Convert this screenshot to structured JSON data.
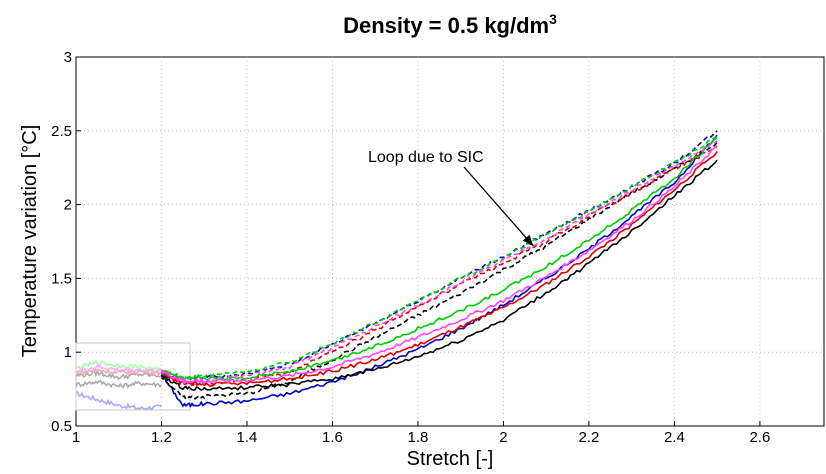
{
  "chart_data": {
    "type": "line",
    "title": "Density = 0.5 kg/dm",
    "title_superscript": "3",
    "xlabel": "Stretch [-]",
    "ylabel": "Temperature variation [°C]",
    "xlim": [
      1,
      2.75
    ],
    "ylim": [
      0.5,
      3
    ],
    "xticks": [
      1,
      1.2,
      1.4,
      1.6,
      1.8,
      2,
      2.2,
      2.4,
      2.6
    ],
    "yticks": [
      0.5,
      1,
      1.5,
      2,
      2.5,
      3
    ],
    "xtick_labels": [
      "1",
      "1.2",
      "1.4",
      "1.6",
      "1.8",
      "2",
      "2.2",
      "2.4",
      "2.6"
    ],
    "ytick_labels": [
      "0.5",
      "1",
      "1.5",
      "2",
      "2.5",
      "3"
    ],
    "grid": true,
    "annotation": {
      "text": "Loop due to SIC",
      "arrow_to": {
        "x": 2.07,
        "y": 1.72
      }
    },
    "series": [
      {
        "color": "#0000cc",
        "style": "solid",
        "x": [
          1.2,
          1.25,
          1.3,
          1.4,
          1.5,
          1.6,
          1.7,
          1.8,
          1.9,
          2.0,
          2.1,
          2.2,
          2.3,
          2.4,
          2.5
        ],
        "y": [
          0.85,
          0.64,
          0.65,
          0.67,
          0.72,
          0.8,
          0.9,
          1.02,
          1.16,
          1.32,
          1.5,
          1.7,
          1.92,
          2.15,
          2.47
        ]
      },
      {
        "color": "#0000cc",
        "style": "dashed",
        "x": [
          1.2,
          1.25,
          1.3,
          1.4,
          1.5,
          1.6,
          1.7,
          1.8,
          1.9,
          2.0,
          2.1,
          2.2,
          2.3,
          2.4,
          2.5
        ],
        "y": [
          0.85,
          0.82,
          0.83,
          0.85,
          0.92,
          1.05,
          1.2,
          1.35,
          1.5,
          1.65,
          1.8,
          1.96,
          2.12,
          2.28,
          2.5
        ]
      },
      {
        "color": "#000000",
        "style": "solid",
        "x": [
          1.2,
          1.25,
          1.3,
          1.4,
          1.5,
          1.6,
          1.7,
          1.8,
          1.9,
          2.0,
          2.1,
          2.2,
          2.3,
          2.4,
          2.5
        ],
        "y": [
          0.84,
          0.76,
          0.75,
          0.76,
          0.78,
          0.82,
          0.88,
          0.97,
          1.08,
          1.22,
          1.4,
          1.6,
          1.82,
          2.06,
          2.3
        ]
      },
      {
        "color": "#000000",
        "style": "dashed",
        "x": [
          1.2,
          1.25,
          1.3,
          1.4,
          1.5,
          1.6,
          1.7,
          1.8,
          1.9,
          2.0,
          2.1,
          2.2,
          2.3,
          2.4,
          2.5
        ],
        "y": [
          0.84,
          0.69,
          0.7,
          0.72,
          0.8,
          0.95,
          1.1,
          1.25,
          1.4,
          1.56,
          1.72,
          1.9,
          2.08,
          2.24,
          2.42
        ]
      },
      {
        "color": "#dd0000",
        "style": "solid",
        "x": [
          1.2,
          1.25,
          1.3,
          1.4,
          1.5,
          1.6,
          1.7,
          1.8,
          1.9,
          2.0,
          2.1,
          2.2,
          2.3,
          2.4,
          2.5
        ],
        "y": [
          0.86,
          0.79,
          0.78,
          0.79,
          0.82,
          0.87,
          0.95,
          1.05,
          1.17,
          1.3,
          1.46,
          1.65,
          1.86,
          2.1,
          2.36
        ]
      },
      {
        "color": "#dd0000",
        "style": "dashed",
        "x": [
          1.2,
          1.25,
          1.3,
          1.4,
          1.5,
          1.6,
          1.7,
          1.8,
          1.9,
          2.0,
          2.1,
          2.2,
          2.3,
          2.4,
          2.5
        ],
        "y": [
          0.86,
          0.78,
          0.79,
          0.81,
          0.87,
          1.0,
          1.15,
          1.31,
          1.46,
          1.6,
          1.75,
          1.92,
          2.08,
          2.24,
          2.39
        ]
      },
      {
        "color": "#00cc00",
        "style": "solid",
        "x": [
          1.2,
          1.25,
          1.3,
          1.4,
          1.5,
          1.6,
          1.7,
          1.8,
          1.9,
          2.0,
          2.1,
          2.2,
          2.3,
          2.4,
          2.5
        ],
        "y": [
          0.87,
          0.82,
          0.82,
          0.83,
          0.87,
          0.94,
          1.04,
          1.16,
          1.28,
          1.42,
          1.58,
          1.76,
          1.96,
          2.18,
          2.45
        ]
      },
      {
        "color": "#00cc00",
        "style": "dashed",
        "x": [
          1.2,
          1.25,
          1.3,
          1.4,
          1.5,
          1.6,
          1.7,
          1.8,
          1.9,
          2.0,
          2.1,
          2.2,
          2.3,
          2.4,
          2.5
        ],
        "y": [
          0.87,
          0.83,
          0.84,
          0.87,
          0.93,
          1.06,
          1.2,
          1.35,
          1.5,
          1.64,
          1.8,
          1.95,
          2.12,
          2.28,
          2.46
        ]
      },
      {
        "color": "#ff44ff",
        "style": "solid",
        "x": [
          1.2,
          1.25,
          1.3,
          1.4,
          1.5,
          1.6,
          1.7,
          1.8,
          1.9,
          2.0,
          2.1,
          2.2,
          2.3,
          2.4,
          2.5
        ],
        "y": [
          0.87,
          0.81,
          0.8,
          0.81,
          0.84,
          0.9,
          0.99,
          1.1,
          1.22,
          1.35,
          1.51,
          1.69,
          1.89,
          2.12,
          2.4
        ]
      },
      {
        "color": "#ff44ff",
        "style": "dashed",
        "x": [
          1.2,
          1.25,
          1.3,
          1.4,
          1.5,
          1.6,
          1.7,
          1.8,
          1.9,
          2.0,
          2.1,
          2.2,
          2.3,
          2.4,
          2.5
        ],
        "y": [
          0.87,
          0.8,
          0.81,
          0.84,
          0.9,
          1.03,
          1.17,
          1.32,
          1.47,
          1.62,
          1.77,
          1.93,
          2.1,
          2.26,
          2.43
        ]
      }
    ],
    "faded_series": [
      {
        "color": "#aaaaff",
        "x": [
          1.0,
          1.05,
          1.1,
          1.15,
          1.2
        ],
        "y": [
          0.72,
          0.68,
          0.64,
          0.62,
          0.63
        ]
      },
      {
        "color": "#aaaaaa",
        "x": [
          1.0,
          1.05,
          1.1,
          1.15,
          1.2
        ],
        "y": [
          0.78,
          0.8,
          0.77,
          0.79,
          0.78
        ]
      },
      {
        "color": "#aaaaaa",
        "x": [
          1.0,
          1.05,
          1.1,
          1.15,
          1.2
        ],
        "y": [
          0.84,
          0.86,
          0.83,
          0.85,
          0.84
        ]
      },
      {
        "color": "#ffaaaa",
        "x": [
          1.0,
          1.05,
          1.1,
          1.15,
          1.2
        ],
        "y": [
          0.86,
          0.88,
          0.86,
          0.87,
          0.86
        ]
      },
      {
        "color": "#aaffaa",
        "x": [
          1.0,
          1.05,
          1.1,
          1.15,
          1.2
        ],
        "y": [
          0.89,
          0.93,
          0.91,
          0.9,
          0.88
        ]
      },
      {
        "color": "#ffaaff",
        "x": [
          1.0,
          1.05,
          1.1,
          1.15,
          1.2
        ],
        "y": [
          0.87,
          0.9,
          0.88,
          0.88,
          0.87
        ]
      }
    ]
  }
}
